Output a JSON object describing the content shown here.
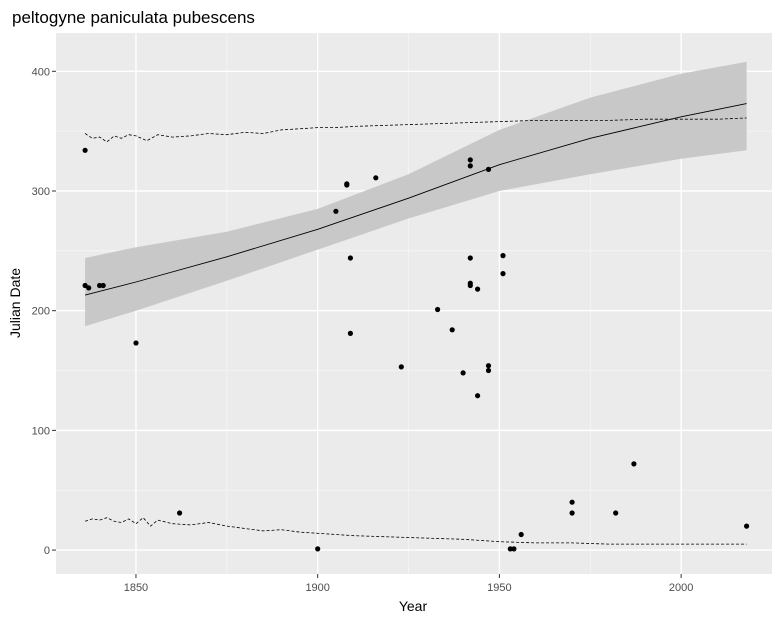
{
  "chart_data": {
    "type": "scatter",
    "title": "peltogyne paniculata pubescens",
    "xlabel": "Year",
    "ylabel": "Julian Date",
    "xlim": [
      1828,
      2025
    ],
    "ylim": [
      -20,
      432
    ],
    "xticks": [
      1850,
      1900,
      1950,
      2000
    ],
    "yticks": [
      0,
      100,
      200,
      300,
      400
    ],
    "grid": true,
    "points": [
      {
        "x": 1836,
        "y": 334
      },
      {
        "x": 1836,
        "y": 221
      },
      {
        "x": 1837,
        "y": 219
      },
      {
        "x": 1840,
        "y": 221
      },
      {
        "x": 1841,
        "y": 221
      },
      {
        "x": 1850,
        "y": 173
      },
      {
        "x": 1862,
        "y": 31
      },
      {
        "x": 1900,
        "y": 1
      },
      {
        "x": 1905,
        "y": 283
      },
      {
        "x": 1908,
        "y": 306
      },
      {
        "x": 1908,
        "y": 305
      },
      {
        "x": 1909,
        "y": 244
      },
      {
        "x": 1909,
        "y": 181
      },
      {
        "x": 1916,
        "y": 311
      },
      {
        "x": 1923,
        "y": 153
      },
      {
        "x": 1933,
        "y": 201
      },
      {
        "x": 1937,
        "y": 184
      },
      {
        "x": 1940,
        "y": 148
      },
      {
        "x": 1942,
        "y": 326
      },
      {
        "x": 1942,
        "y": 321
      },
      {
        "x": 1942,
        "y": 244
      },
      {
        "x": 1942,
        "y": 223
      },
      {
        "x": 1942,
        "y": 221
      },
      {
        "x": 1944,
        "y": 218
      },
      {
        "x": 1944,
        "y": 129
      },
      {
        "x": 1947,
        "y": 318
      },
      {
        "x": 1947,
        "y": 154
      },
      {
        "x": 1947,
        "y": 150
      },
      {
        "x": 1951,
        "y": 246
      },
      {
        "x": 1951,
        "y": 231
      },
      {
        "x": 1953,
        "y": 1
      },
      {
        "x": 1954,
        "y": 1
      },
      {
        "x": 1956,
        "y": 13
      },
      {
        "x": 1970,
        "y": 40
      },
      {
        "x": 1970,
        "y": 31
      },
      {
        "x": 1982,
        "y": 31
      },
      {
        "x": 1987,
        "y": 72
      },
      {
        "x": 2018,
        "y": 20
      }
    ],
    "trend_line": {
      "x": [
        1836,
        1850,
        1875,
        1900,
        1925,
        1950,
        1975,
        2000,
        2018
      ],
      "y": [
        213,
        224,
        245,
        268,
        294,
        322,
        344,
        362,
        373
      ]
    },
    "confidence_band": {
      "x": [
        1836,
        1850,
        1875,
        1900,
        1925,
        1950,
        1975,
        2000,
        2018
      ],
      "lower": [
        187,
        200,
        225,
        251,
        277,
        300,
        314,
        327,
        334
      ],
      "upper": [
        244,
        253,
        266,
        285,
        314,
        351,
        378,
        398,
        408
      ]
    },
    "upper_dashed_line": {
      "x": [
        1836,
        1838,
        1840,
        1842,
        1844,
        1846,
        1848,
        1850,
        1853,
        1856,
        1860,
        1865,
        1870,
        1875,
        1880,
        1885,
        1890,
        1895,
        1900,
        1905,
        1910,
        1920,
        1930,
        1940,
        1950,
        1960,
        1970,
        1980,
        1990,
        2000,
        2010,
        2018
      ],
      "y": [
        348,
        344,
        345,
        341,
        346,
        344,
        347,
        346,
        342,
        347,
        345,
        346,
        348,
        347,
        349,
        348,
        351,
        352,
        353,
        353,
        354,
        355,
        356,
        357,
        358,
        359,
        359,
        359,
        360,
        360,
        360,
        361
      ]
    },
    "lower_dashed_line": {
      "x": [
        1836,
        1838,
        1840,
        1842,
        1844,
        1846,
        1848,
        1850,
        1852,
        1854,
        1856,
        1860,
        1865,
        1870,
        1875,
        1880,
        1885,
        1890,
        1895,
        1900,
        1905,
        1910,
        1920,
        1930,
        1940,
        1950,
        1960,
        1970,
        1980,
        1990,
        2000,
        2010,
        2018
      ],
      "y": [
        24,
        26,
        25,
        27,
        24,
        23,
        26,
        22,
        27,
        20,
        25,
        22,
        21,
        23,
        20,
        18,
        16,
        17,
        15,
        14,
        13,
        12,
        11,
        10,
        9,
        7,
        6,
        6,
        5,
        5,
        5,
        5,
        5
      ]
    }
  }
}
